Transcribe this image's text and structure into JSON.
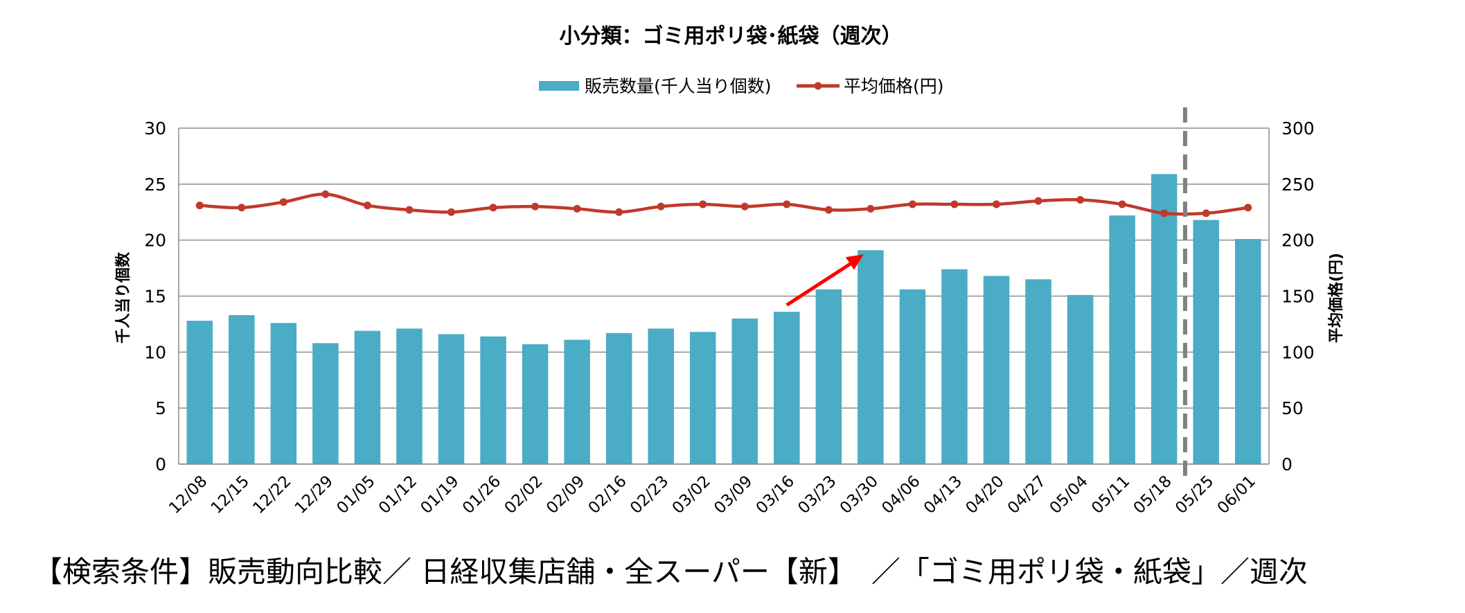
{
  "chart_data": {
    "type": "bar",
    "title": "小分類：ゴミ用ポリ袋･紙袋（週次）",
    "categories": [
      "12/08",
      "12/15",
      "12/22",
      "12/29",
      "01/05",
      "01/12",
      "01/19",
      "01/26",
      "02/02",
      "02/09",
      "02/16",
      "02/23",
      "03/02",
      "03/09",
      "03/16",
      "03/23",
      "03/30",
      "04/06",
      "04/13",
      "04/20",
      "04/27",
      "05/04",
      "05/11",
      "05/18",
      "05/25",
      "06/01"
    ],
    "series": [
      {
        "name": "販売数量(千人当り個数)",
        "type": "bar",
        "axis": "left",
        "color": "#4BACC6",
        "values": [
          12.8,
          13.3,
          12.6,
          10.8,
          11.9,
          12.1,
          11.6,
          11.4,
          10.7,
          11.1,
          11.7,
          12.1,
          11.8,
          13.0,
          13.6,
          15.6,
          19.1,
          15.6,
          17.4,
          16.8,
          16.5,
          15.1,
          22.2,
          25.9,
          21.8,
          20.1
        ]
      },
      {
        "name": "平均価格(円)",
        "type": "line",
        "axis": "right",
        "color": "#C0392B",
        "values": [
          231,
          229,
          234,
          241,
          231,
          227,
          225,
          229,
          230,
          228,
          225,
          230,
          232,
          230,
          232,
          227,
          228,
          232,
          232,
          232,
          235,
          236,
          232,
          224,
          224,
          229
        ]
      }
    ],
    "ylabel": "千人当り個数",
    "y2label": "平均価格(円)",
    "ylim": [
      0,
      30
    ],
    "y2lim": [
      0,
      300
    ],
    "yticks": [
      "0",
      "5",
      "10",
      "15",
      "20",
      "25",
      "30"
    ],
    "y2ticks": [
      "0",
      "50",
      "100",
      "150",
      "200",
      "250",
      "300"
    ],
    "grid": true,
    "legend_position": "top-center",
    "annotations": {
      "arrow": {
        "from": {
          "x": "03/16",
          "y": 14.2
        },
        "to": {
          "x": "03/30",
          "y": 19.1
        },
        "color": "#FF0000"
      },
      "vline": {
        "between": [
          "05/18",
          "05/25"
        ],
        "style": "dashed",
        "color": "#808080"
      }
    }
  },
  "footer": {
    "text": "【検索条件】販売動向比較／ 日経収集店舗・全スーパー【新】　／「ゴミ用ポリ袋・紙袋」／週次"
  }
}
